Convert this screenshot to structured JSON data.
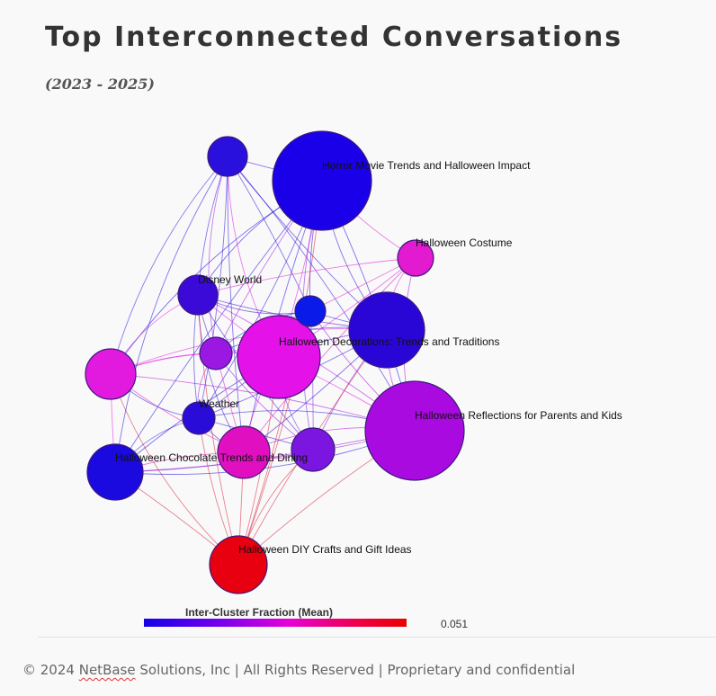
{
  "header": {
    "title": "Top Interconnected Conversations",
    "subtitle": "(2023 - 2025)"
  },
  "legend": {
    "title": "Inter-Cluster Fraction (Mean)",
    "max_value": "0.051",
    "gradient_colors": [
      "#1500e6",
      "#7a00ee",
      "#e600d8",
      "#ee0044",
      "#e80000"
    ]
  },
  "chart_data": {
    "type": "network",
    "nodes": [
      {
        "id": "horror",
        "label": "Horror Movie Trends and Halloween Impact",
        "color": "#1a00e8"
      },
      {
        "id": "costume",
        "label": "Halloween Costume",
        "color": "#e21ad0"
      },
      {
        "id": "disney",
        "label": "Disney World",
        "color": "#3b0ad9"
      },
      {
        "id": "decorations",
        "label": "Halloween Decorations: Trends and Traditions",
        "color": "#e412e8"
      },
      {
        "id": "reflections",
        "label": "Halloween Reflections for Parents and Kids",
        "color": "#a90ae0"
      },
      {
        "id": "weather",
        "label": "Weather",
        "color": "#2a0cd8"
      },
      {
        "id": "chocolate",
        "label": "Halloween Chocolate Trends and Dining",
        "color": "#e010c0"
      },
      {
        "id": "diy",
        "label": "Halloween DIY Crafts and Gift Ideas",
        "color": "#e80010"
      },
      {
        "id": "n_top",
        "label": "",
        "color": "#2a10dc"
      },
      {
        "id": "n_small",
        "label": "",
        "color": "#0a1ae8"
      },
      {
        "id": "n_right",
        "label": "",
        "color": "#2a06d6"
      },
      {
        "id": "n_midpurple",
        "label": "",
        "color": "#9a18e2"
      },
      {
        "id": "n_leftpink",
        "label": "",
        "color": "#e21ae0"
      },
      {
        "id": "n_leftblue",
        "label": "",
        "color": "#1a0ae0"
      },
      {
        "id": "n_purple",
        "label": "",
        "color": "#7a16e0"
      }
    ]
  },
  "footer": {
    "prefix": "© 2024",
    "brand": "NetBase",
    "suffix": "Solutions, Inc | All Rights Reserved | Proprietary and confidential"
  }
}
